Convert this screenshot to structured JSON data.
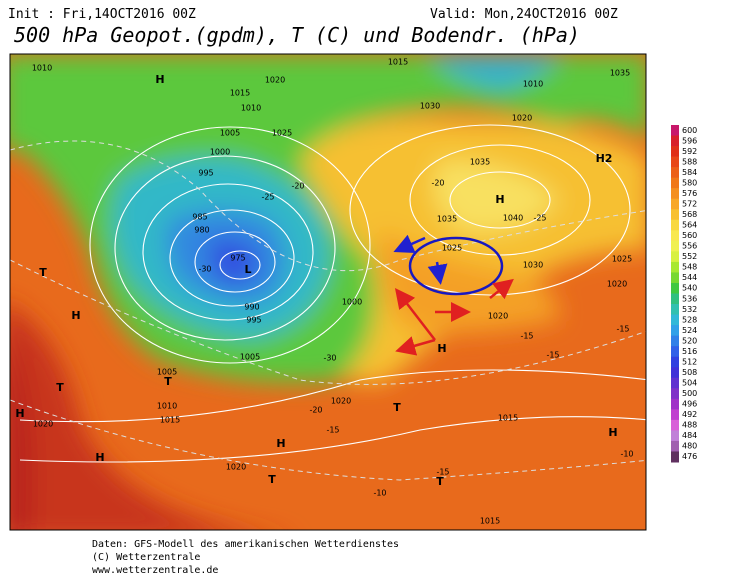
{
  "header": {
    "init": "Init : Fri,14OCT2016 00Z",
    "valid": "Valid: Mon,24OCT2016 00Z",
    "title": "500 hPa Geopot.(gpdm), T (C) und Bodendr. (hPa)"
  },
  "map": {
    "labels": [
      "H",
      "L",
      "H",
      "T",
      "H",
      "T",
      "T",
      "H",
      "H",
      "H",
      "T",
      "H",
      "T",
      "T",
      "H",
      "H2",
      "1010",
      "1015",
      "1030",
      "1035",
      "1040",
      "1035",
      "1025",
      "1030",
      "1025",
      "1020",
      "1020",
      "1015",
      "1015",
      "1005",
      "1010",
      "1015",
      "1020",
      "1020",
      "1020",
      "1005",
      "1000",
      "995",
      "990",
      "985",
      "980",
      "995",
      "1000",
      "1005",
      "1010",
      "1015",
      "1020",
      "1025",
      "1035",
      "1010",
      "1020",
      "975",
      "-30",
      "-25",
      "-20",
      "-30",
      "-20",
      "-15",
      "-15",
      "-15",
      "-15",
      "-15",
      "-10",
      "-10",
      "-20",
      "-25"
    ]
  },
  "colorbar": {
    "ticks": [
      600,
      596,
      592,
      588,
      584,
      580,
      576,
      572,
      568,
      564,
      560,
      556,
      552,
      548,
      544,
      540,
      536,
      532,
      528,
      524,
      520,
      516,
      512,
      508,
      504,
      500,
      496,
      492,
      488,
      484,
      480,
      476
    ],
    "colors": [
      "#c8186a",
      "#d8202a",
      "#e03018",
      "#e84818",
      "#ec6018",
      "#f07818",
      "#f49020",
      "#f8a828",
      "#f8c030",
      "#f8d840",
      "#f8e850",
      "#f0f050",
      "#d8f040",
      "#a8e830",
      "#78d830",
      "#40c840",
      "#30c080",
      "#30c0b0",
      "#30b8d8",
      "#30a0e8",
      "#3080e8",
      "#3060e8",
      "#3040e0",
      "#4030d8",
      "#6030d0",
      "#8030c8",
      "#a030c8",
      "#c040d0",
      "#d860d8",
      "#c080d8",
      "#a060b0",
      "#603060"
    ]
  },
  "footer": {
    "lines": [
      "Daten: GFS-Modell des amerikanischen Wetterdienstes",
      "(C) Wetterzentrale",
      "www.wetterzentrale.de"
    ]
  }
}
